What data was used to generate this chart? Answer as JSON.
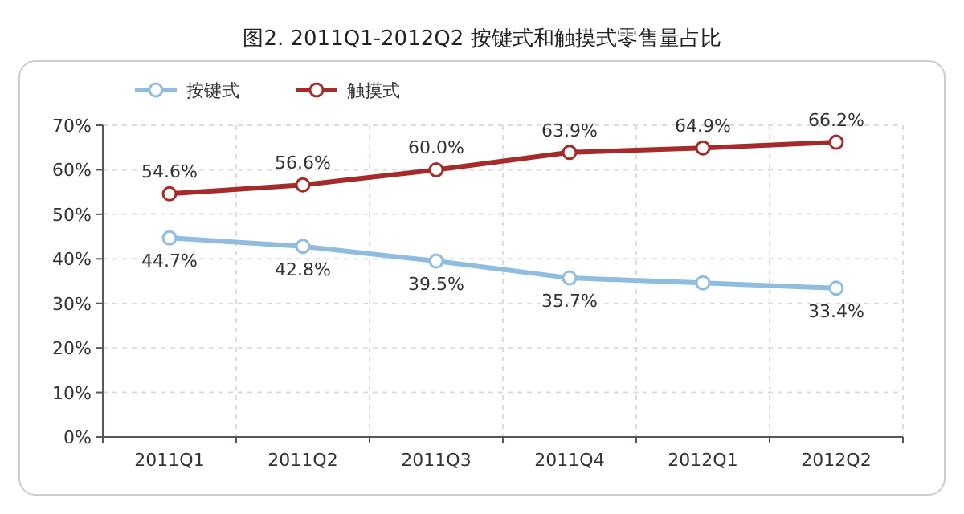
{
  "chart_data": {
    "type": "line",
    "title": "图2. 2011Q1-2012Q2 按键式和触摸式零售量占比",
    "categories": [
      "2011Q1",
      "2011Q2",
      "2011Q3",
      "2011Q4",
      "2012Q1",
      "2012Q2"
    ],
    "series": [
      {
        "name": "按键式",
        "color": "#8fbde0",
        "values": [
          44.7,
          42.8,
          39.5,
          35.7,
          34.6,
          33.4
        ],
        "value_labels": [
          "44.7%",
          "42.8%",
          "39.5%",
          "35.7%",
          null,
          "33.4%"
        ]
      },
      {
        "name": "触摸式",
        "color": "#a52a2a",
        "values": [
          54.6,
          56.6,
          60.0,
          63.9,
          64.9,
          66.2
        ],
        "value_labels": [
          "54.6%",
          "56.6%",
          "60.0%",
          "63.9%",
          "64.9%",
          "66.2%"
        ]
      }
    ],
    "ylim": [
      0,
      70
    ],
    "yticks": [
      {
        "value": 0,
        "label": "0%"
      },
      {
        "value": 10,
        "label": "10%"
      },
      {
        "value": 20,
        "label": "20%"
      },
      {
        "value": 30,
        "label": "30%"
      },
      {
        "value": 40,
        "label": "40%"
      },
      {
        "value": 50,
        "label": "50%"
      },
      {
        "value": 60,
        "label": "60%"
      },
      {
        "value": 70,
        "label": "70%"
      }
    ],
    "grid": true,
    "legend": "top left",
    "marker": "circle",
    "line_style": "solid"
  }
}
